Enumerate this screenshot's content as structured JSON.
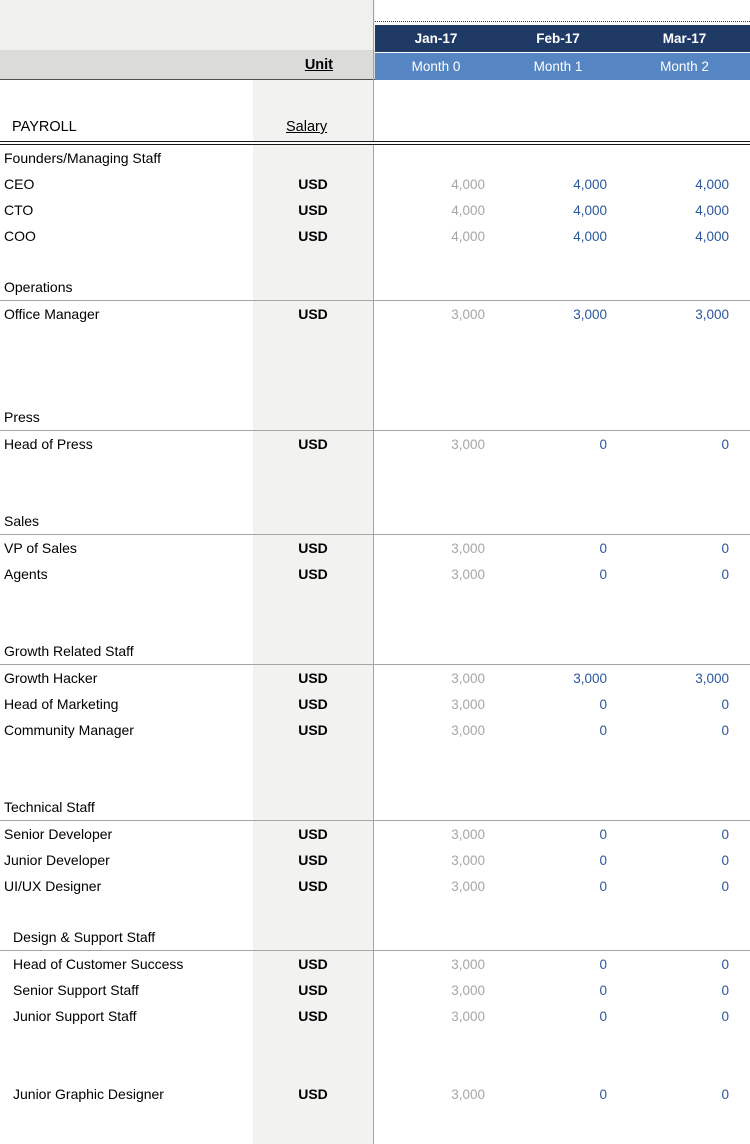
{
  "header": {
    "unit_label": "Unit",
    "months": [
      "Jan-17",
      "Feb-17",
      "Mar-17"
    ],
    "month_numbers": [
      "Month 0",
      "Month 1",
      "Month 2"
    ]
  },
  "colors": {
    "month_band_dark": "#203a66",
    "month_band_light": "#5585c3",
    "value_month0_gray": "#a6a6a6",
    "value_future_blue": "#2a579d",
    "unit_column_bg": "#f2f2f1",
    "unit_row_bg": "#dbdbda"
  },
  "rows": [
    {
      "type": "blank"
    },
    {
      "type": "header_row",
      "label": "PAYROLL",
      "salary_label": "Salary"
    },
    {
      "type": "section",
      "label": "Founders/Managing Staff"
    },
    {
      "type": "item",
      "label": "CEO",
      "unit": "USD",
      "values": [
        "4,000",
        "4,000",
        "4,000"
      ]
    },
    {
      "type": "item",
      "label": "CTO",
      "unit": "USD",
      "values": [
        "4,000",
        "4,000",
        "4,000"
      ]
    },
    {
      "type": "item",
      "label": "COO",
      "unit": "USD",
      "values": [
        "4,000",
        "4,000",
        "4,000"
      ]
    },
    {
      "type": "blank"
    },
    {
      "type": "section",
      "label": "Operations",
      "rule": true
    },
    {
      "type": "item",
      "label": "Office Manager",
      "unit": "USD",
      "values": [
        "3,000",
        "3,000",
        "3,000"
      ]
    },
    {
      "type": "blank"
    },
    {
      "type": "blank"
    },
    {
      "type": "blank"
    },
    {
      "type": "section",
      "label": "Press",
      "rule": true
    },
    {
      "type": "item",
      "label": "Head of Press",
      "unit": "USD",
      "values": [
        "3,000",
        "0",
        "0"
      ]
    },
    {
      "type": "blank"
    },
    {
      "type": "blank"
    },
    {
      "type": "section",
      "label": "Sales",
      "rule": true
    },
    {
      "type": "item",
      "label": "VP of Sales",
      "unit": "USD",
      "values": [
        "3,000",
        "0",
        "0"
      ]
    },
    {
      "type": "item",
      "label": "Agents",
      "unit": "USD",
      "values": [
        "3,000",
        "0",
        "0"
      ]
    },
    {
      "type": "blank"
    },
    {
      "type": "blank"
    },
    {
      "type": "section",
      "label": "Growth Related Staff",
      "rule": true
    },
    {
      "type": "item",
      "label": "Growth Hacker",
      "unit": "USD",
      "values": [
        "3,000",
        "3,000",
        "3,000"
      ]
    },
    {
      "type": "item",
      "label": "Head of Marketing",
      "unit": "USD",
      "values": [
        "3,000",
        "0",
        "0"
      ]
    },
    {
      "type": "item",
      "label": "Community Manager",
      "unit": "USD",
      "values": [
        "3,000",
        "0",
        "0"
      ]
    },
    {
      "type": "blank"
    },
    {
      "type": "blank"
    },
    {
      "type": "section",
      "label": "Technical Staff",
      "rule": true
    },
    {
      "type": "item",
      "label": "Senior Developer",
      "unit": "USD",
      "values": [
        "3,000",
        "0",
        "0"
      ]
    },
    {
      "type": "item",
      "label": "Junior Developer",
      "unit": "USD",
      "values": [
        "3,000",
        "0",
        "0"
      ]
    },
    {
      "type": "item",
      "label": "UI/UX Designer",
      "unit": "USD",
      "values": [
        "3,000",
        "0",
        "0"
      ]
    },
    {
      "type": "blank"
    },
    {
      "type": "section",
      "label": "Design & Support Staff",
      "rule": true,
      "indent": true
    },
    {
      "type": "item",
      "label": "Head of Customer Success",
      "unit": "USD",
      "values": [
        "3,000",
        "0",
        "0"
      ],
      "indent": true
    },
    {
      "type": "item",
      "label": "Senior Support Staff",
      "unit": "USD",
      "values": [
        "3,000",
        "0",
        "0"
      ],
      "indent": true
    },
    {
      "type": "item",
      "label": "Junior Support Staff",
      "unit": "USD",
      "values": [
        "3,000",
        "0",
        "0"
      ],
      "indent": true
    },
    {
      "type": "blank"
    },
    {
      "type": "blank"
    },
    {
      "type": "item",
      "label": "Junior Graphic Designer",
      "unit": "USD",
      "values": [
        "3,000",
        "0",
        "0"
      ],
      "indent": true
    },
    {
      "type": "blank"
    }
  ]
}
